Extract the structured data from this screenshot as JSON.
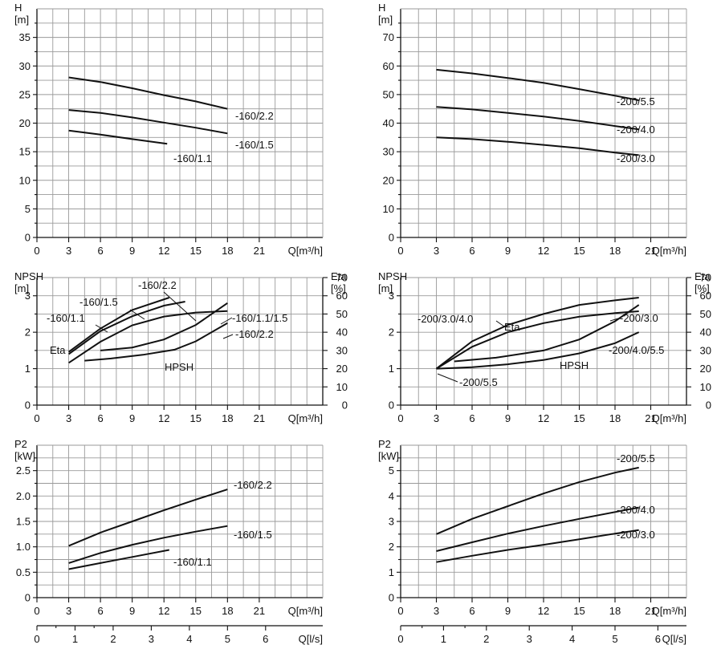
{
  "x_tick_labels": [
    "0",
    "3",
    "6",
    "9",
    "12",
    "15",
    "18",
    "21"
  ],
  "x_axis_label": "Q[m³/h]",
  "ls_tick_labels": [
    "0",
    "1",
    "2",
    "3",
    "4",
    "5",
    "6"
  ],
  "ls_axis_label": "Q[l/s]",
  "chart_data": [
    {
      "id": "head-160",
      "type": "line",
      "y_label": "H",
      "y_unit": "[m]",
      "y_tick_labels": [
        "0",
        "5",
        "10",
        "15",
        "20",
        "25",
        "30",
        "35"
      ],
      "xlim": [
        0,
        27
      ],
      "ylim": [
        0,
        40
      ],
      "series": [
        {
          "name": "-160/2.2",
          "x": [
            3,
            6,
            9,
            12,
            15,
            18
          ],
          "y": [
            28.0,
            27.2,
            26.1,
            24.9,
            23.8,
            22.5
          ]
        },
        {
          "name": "-160/1.5",
          "x": [
            3,
            6,
            9,
            12,
            15,
            18
          ],
          "y": [
            22.3,
            21.8,
            21.0,
            20.1,
            19.2,
            18.2
          ]
        },
        {
          "name": "-160/1.1",
          "x": [
            3,
            6,
            9,
            12.3
          ],
          "y": [
            18.7,
            18.0,
            17.2,
            16.4
          ]
        }
      ]
    },
    {
      "id": "head-200",
      "type": "line",
      "y_label": "H",
      "y_unit": "[m]",
      "y_tick_labels": [
        "0",
        "10",
        "20",
        "30",
        "40",
        "50",
        "60",
        "70"
      ],
      "xlim": [
        0,
        24
      ],
      "ylim": [
        0,
        80
      ],
      "series": [
        {
          "name": "-200/5.5",
          "x": [
            3,
            6,
            9,
            12,
            15,
            18,
            20
          ],
          "y": [
            58.7,
            57.4,
            55.8,
            54.1,
            51.9,
            49.6,
            48.0
          ]
        },
        {
          "name": "-200/4.0",
          "x": [
            3,
            6,
            9,
            12,
            15,
            18,
            20
          ],
          "y": [
            45.7,
            44.8,
            43.6,
            42.3,
            40.8,
            39.0,
            37.8
          ]
        },
        {
          "name": "-200/3.0",
          "x": [
            3,
            6,
            9,
            12,
            15,
            18,
            20
          ],
          "y": [
            35.0,
            34.4,
            33.5,
            32.4,
            31.2,
            29.7,
            28.8
          ]
        }
      ]
    },
    {
      "id": "npsh-eta-160",
      "type": "line",
      "y_label": "NPSH",
      "y_unit": "[m]",
      "y_tick_labels": [
        "0",
        "1",
        "2",
        "3"
      ],
      "y2_label": "Eta",
      "y2_unit": "[%]",
      "y2_tick_labels": [
        "0",
        "10",
        "20",
        "30",
        "40",
        "50",
        "60",
        "70"
      ],
      "xlim": [
        0,
        27
      ],
      "ylim": [
        0,
        3.5
      ],
      "y2lim": [
        0,
        70
      ],
      "eta_series": [
        {
          "name": "-160/2.2",
          "x": [
            3,
            6,
            9,
            12,
            15,
            18
          ],
          "y": [
            23.2,
            34.8,
            43.8,
            48.6,
            50.8,
            51.6
          ]
        },
        {
          "name": "-160/1.5",
          "x": [
            3,
            6,
            9,
            12,
            14
          ],
          "y": [
            28.0,
            40.6,
            48.8,
            54.6,
            56.8
          ]
        },
        {
          "name": "-160/1.1",
          "x": [
            3,
            6,
            9,
            12.5
          ],
          "y": [
            29.2,
            42.0,
            52.2,
            59.0
          ]
        }
      ],
      "npsh_series": [
        {
          "name": "-160/1.1/1.5",
          "x": [
            6,
            9,
            12,
            15,
            18
          ],
          "y": [
            1.5,
            1.58,
            1.8,
            2.2,
            2.8
          ]
        },
        {
          "name": "-160/2.2",
          "x": [
            4.5,
            7,
            10,
            13,
            15,
            18
          ],
          "y": [
            1.22,
            1.28,
            1.38,
            1.52,
            1.75,
            2.25
          ]
        }
      ],
      "labels": [
        "-160/2.2",
        "-160/1.5",
        "-160/1.1",
        "-160/1.1/1.5",
        "-160/2.2",
        "Eta",
        "HPSH"
      ]
    },
    {
      "id": "npsh-eta-200",
      "type": "line",
      "y_label": "NPSH",
      "y_unit": "[m]",
      "y_tick_labels": [
        "0",
        "1",
        "2",
        "3"
      ],
      "y2_label": "Eta",
      "y2_unit": "[%]",
      "y2_tick_labels": [
        "0",
        "10",
        "20",
        "30",
        "40",
        "50",
        "60",
        "70"
      ],
      "xlim": [
        0,
        24
      ],
      "ylim": [
        0,
        3.5
      ],
      "y2lim": [
        0,
        70
      ],
      "eta_series": [
        {
          "name": "-200/3.0/4.0",
          "x": [
            3,
            6,
            9,
            12,
            15,
            18,
            20
          ],
          "y": [
            20,
            35,
            44,
            50,
            55,
            57.5,
            59
          ]
        },
        {
          "name": "-200/5.5",
          "x": [
            3,
            6,
            9,
            12,
            15,
            18,
            20
          ],
          "y": [
            20,
            32,
            40,
            45,
            48.5,
            50.5,
            51.5
          ]
        }
      ],
      "npsh_series": [
        {
          "name": "-200/3.0",
          "x": [
            4.5,
            8,
            12,
            15,
            18,
            20
          ],
          "y": [
            1.2,
            1.3,
            1.5,
            1.8,
            2.3,
            2.75
          ]
        },
        {
          "name": "-200/4.0/5.5",
          "x": [
            3,
            6,
            9,
            12,
            15,
            18,
            20
          ],
          "y": [
            1.0,
            1.04,
            1.12,
            1.24,
            1.42,
            1.7,
            2.0
          ]
        }
      ],
      "labels": [
        "-200/3.0/4.0",
        "Eta",
        "-200/3.0",
        "-200/4.0/5.5",
        "HPSH",
        "-200/5.5"
      ]
    },
    {
      "id": "power-160",
      "type": "line",
      "y_label": "P2",
      "y_unit": "[kW]",
      "y_tick_labels": [
        "0",
        "0.5",
        "1.0",
        "1.5",
        "2.0",
        "2.5"
      ],
      "xlim": [
        0,
        27
      ],
      "ylim": [
        0,
        3
      ],
      "series": [
        {
          "name": "-160/2.2",
          "x": [
            3,
            6,
            9,
            12,
            15,
            18
          ],
          "y": [
            1.02,
            1.28,
            1.5,
            1.72,
            1.93,
            2.13
          ]
        },
        {
          "name": "-160/1.5",
          "x": [
            3,
            6,
            9,
            12,
            15,
            18
          ],
          "y": [
            0.68,
            0.88,
            1.04,
            1.18,
            1.3,
            1.41
          ]
        },
        {
          "name": "-160/1.1",
          "x": [
            3,
            6,
            9,
            12.5
          ],
          "y": [
            0.56,
            0.68,
            0.8,
            0.94
          ]
        }
      ]
    },
    {
      "id": "power-200",
      "type": "line",
      "y_label": "P2",
      "y_unit": "[kW]",
      "y_tick_labels": [
        "0",
        "1",
        "2",
        "3",
        "4",
        "5"
      ],
      "xlim": [
        0,
        24
      ],
      "ylim": [
        0,
        6
      ],
      "series": [
        {
          "name": "-200/5.5",
          "x": [
            3,
            6,
            9,
            12,
            15,
            18,
            20
          ],
          "y": [
            2.5,
            3.1,
            3.6,
            4.1,
            4.55,
            4.92,
            5.12
          ]
        },
        {
          "name": "-200/4.0",
          "x": [
            3,
            6,
            9,
            12,
            15,
            18,
            20
          ],
          "y": [
            1.83,
            2.18,
            2.52,
            2.82,
            3.1,
            3.37,
            3.55
          ]
        },
        {
          "name": "-200/3.0",
          "x": [
            3,
            6,
            9,
            12,
            15,
            18,
            20
          ],
          "y": [
            1.4,
            1.65,
            1.88,
            2.08,
            2.3,
            2.52,
            2.66
          ]
        }
      ]
    }
  ]
}
